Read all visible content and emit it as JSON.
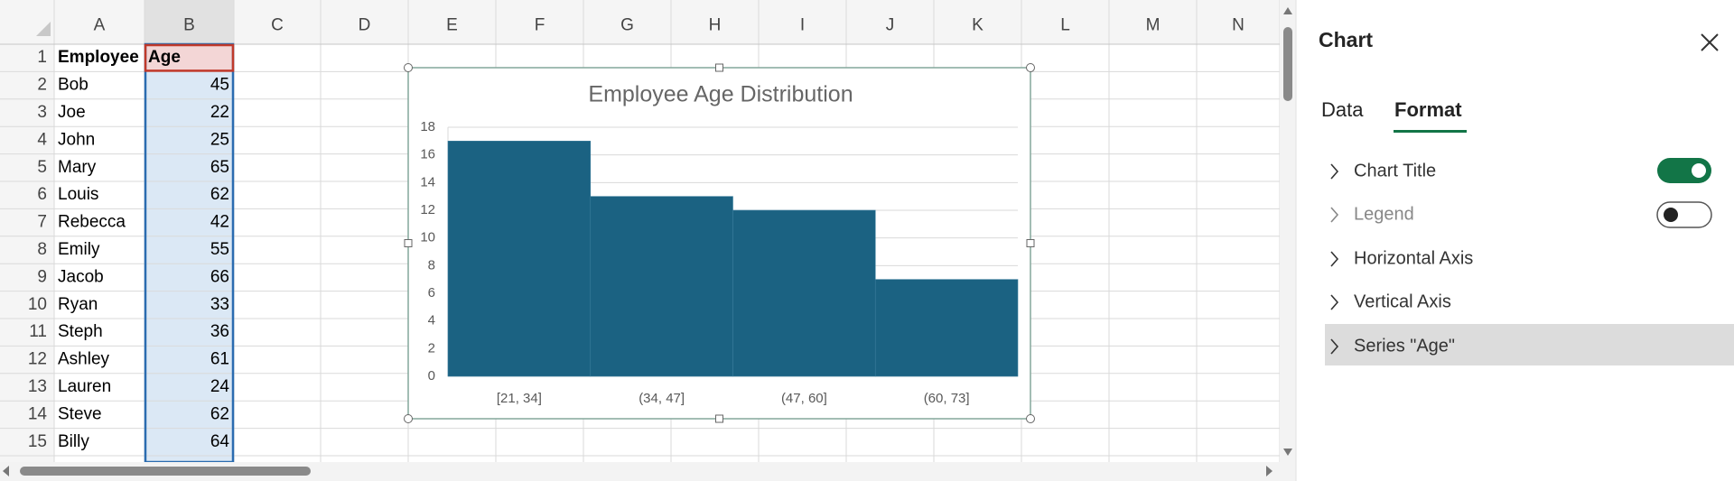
{
  "spreadsheet": {
    "columns": [
      "A",
      "B",
      "C",
      "D",
      "E",
      "F",
      "G",
      "H",
      "I",
      "J",
      "K",
      "L",
      "M",
      "N"
    ],
    "row_numbers": [
      1,
      2,
      3,
      4,
      5,
      6,
      7,
      8,
      9,
      10,
      11,
      12,
      13,
      14,
      15
    ],
    "rows": [
      [
        "Employee",
        "Age"
      ],
      [
        "Bob",
        45
      ],
      [
        "Joe",
        22
      ],
      [
        "John",
        25
      ],
      [
        "Mary",
        65
      ],
      [
        "Louis",
        62
      ],
      [
        "Rebecca",
        42
      ],
      [
        "Emily",
        55
      ],
      [
        "Jacob",
        66
      ],
      [
        "Ryan",
        33
      ],
      [
        "Steph",
        36
      ],
      [
        "Ashley",
        61
      ],
      [
        "Lauren",
        24
      ],
      [
        "Steve",
        62
      ],
      [
        "Billy",
        64
      ]
    ]
  },
  "chart_data": {
    "type": "bar",
    "title": "Employee Age Distribution",
    "categories": [
      "[21, 34]",
      "(34, 47]",
      "(47, 60]",
      "(60, 73]"
    ],
    "values": [
      17,
      13,
      12,
      7
    ],
    "color": "#1b6282",
    "ylim": [
      0,
      18
    ],
    "yticks": [
      0,
      2,
      4,
      6,
      8,
      10,
      12,
      14,
      16,
      18
    ],
    "grid": true
  },
  "panel": {
    "title": "Chart",
    "tabs": [
      "Data",
      "Format"
    ],
    "items": [
      "Chart Title",
      "Legend",
      "Horizontal Axis",
      "Vertical Axis",
      "Series \"Age\""
    ]
  }
}
